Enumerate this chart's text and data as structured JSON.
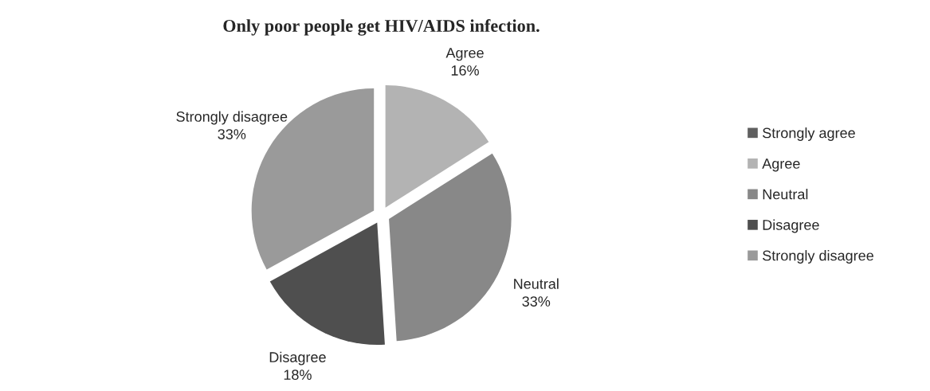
{
  "chart_data": {
    "type": "pie",
    "title": "Only poor people get HIV/AIDS infection.",
    "categories": [
      "Strongly agree",
      "Agree",
      "Neutral",
      "Disagree",
      "Strongly disagree"
    ],
    "values": [
      0,
      16,
      33,
      18,
      33
    ],
    "value_labels": [
      null,
      "16%",
      "33%",
      "18%",
      "33%"
    ],
    "colors": [
      "#5f5f5f",
      "#b3b3b3",
      "#888888",
      "#4f4f4f",
      "#9a9a9a"
    ],
    "legend": "right"
  }
}
